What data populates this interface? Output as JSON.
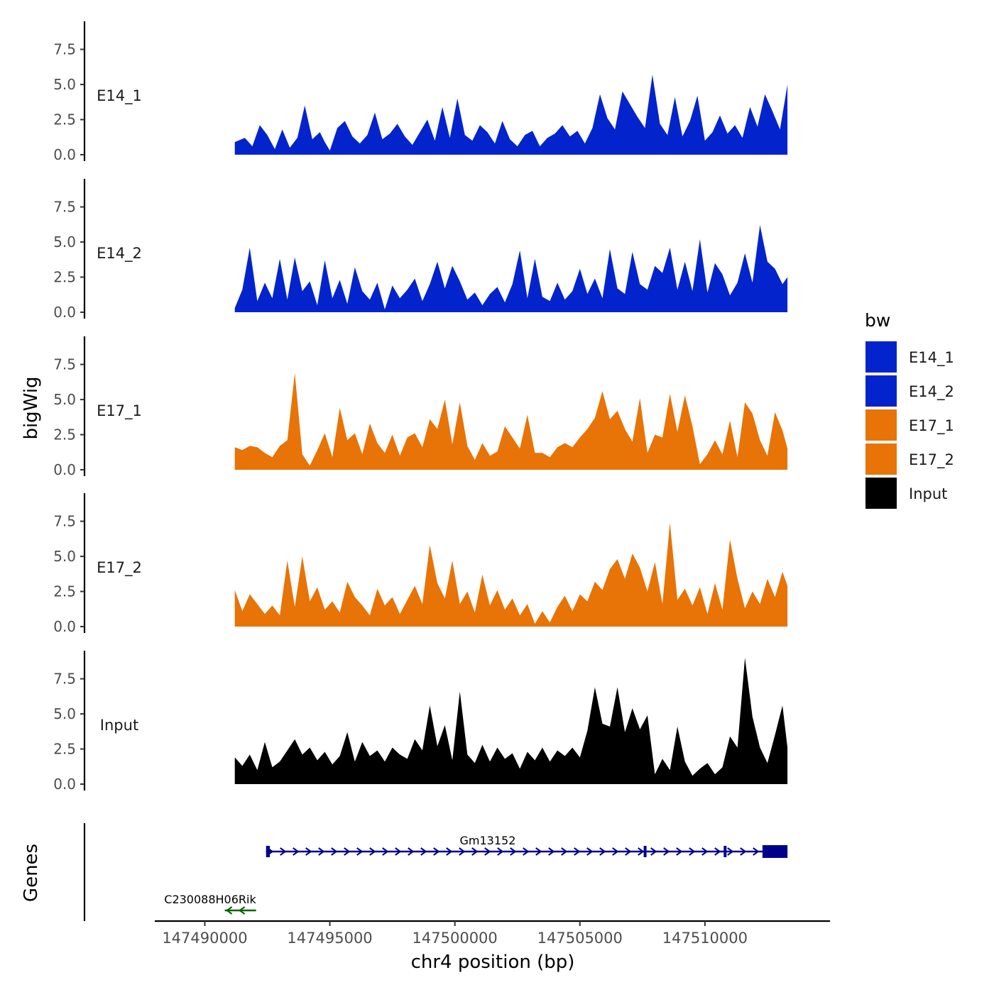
{
  "chart_data": {
    "type": "area",
    "chromosome_axis_label": "chr4 position (bp)",
    "y_axis_label": "bigWig",
    "genes_axis_label": "Genes",
    "xlim": [
      147488000,
      147515000
    ],
    "x_ticks": [
      147490000,
      147495000,
      147500000,
      147505000,
      147510000
    ],
    "x_tick_labels": [
      "147490000",
      "147495000",
      "147500000",
      "147505000",
      "147510000"
    ],
    "ylim": [
      0,
      9.5
    ],
    "y_ticks": [
      0,
      2.5,
      5,
      7.5
    ],
    "y_tick_labels": [
      "0.0",
      "2.5",
      "5.0",
      "7.5"
    ],
    "legend": {
      "title": "bw",
      "entries": [
        {
          "label": "E14_1",
          "color": "#0324CC"
        },
        {
          "label": "E14_2",
          "color": "#0324CC"
        },
        {
          "label": "E17_1",
          "color": "#E87306"
        },
        {
          "label": "E17_2",
          "color": "#E87306"
        },
        {
          "label": "Input",
          "color": "#000000"
        }
      ]
    },
    "series": [
      {
        "name": "E14_1",
        "color": "#0324CC",
        "x": [
          147491200,
          147491600,
          147491900,
          147492200,
          147492500,
          147492800,
          147493100,
          147493400,
          147493700,
          147494000,
          147494300,
          147494600,
          147494800,
          147495000,
          147495300,
          147495600,
          147495900,
          147496200,
          147496500,
          147496800,
          147497100,
          147497400,
          147497700,
          147498000,
          147498300,
          147498600,
          147498900,
          147499200,
          147499500,
          147499800,
          147500100,
          147500400,
          147500700,
          147501000,
          147501300,
          147501600,
          147501900,
          147502200,
          147502500,
          147502800,
          147503100,
          147503400,
          147503700,
          147504000,
          147504300,
          147504600,
          147504900,
          147505200,
          147505500,
          147505800,
          147506100,
          147506400,
          147506700,
          147507000,
          147507300,
          147507600,
          147507900,
          147508200,
          147508500,
          147508800,
          147509100,
          147509400,
          147509700,
          147510000,
          147510300,
          147510600,
          147510900,
          147511200,
          147511500,
          147511800,
          147512100,
          147512400,
          147512700,
          147513000,
          147513300
        ],
        "values": [
          0.9,
          1.2,
          0.6,
          2.1,
          1.4,
          0.4,
          1.8,
          0.5,
          1.2,
          3.5,
          1.1,
          1.6,
          0.9,
          0.3,
          1.9,
          2.4,
          1.3,
          0.8,
          1.4,
          3.0,
          1.1,
          1.5,
          2.2,
          1.3,
          0.7,
          1.6,
          2.5,
          1.0,
          3.4,
          1.2,
          4.0,
          1.4,
          1.0,
          2.1,
          1.6,
          0.8,
          2.4,
          1.1,
          0.6,
          1.4,
          1.7,
          0.6,
          1.2,
          1.5,
          2.1,
          1.3,
          1.7,
          0.8,
          1.9,
          4.3,
          2.6,
          1.8,
          4.5,
          3.6,
          2.7,
          1.9,
          5.7,
          2.2,
          1.4,
          4.1,
          1.3,
          2.4,
          4.2,
          1.0,
          1.6,
          2.8,
          1.5,
          2.1,
          1.2,
          3.4,
          2.0,
          4.3,
          3.1,
          1.8,
          5.0
        ]
      },
      {
        "name": "E14_2",
        "color": "#0324CC",
        "x": [
          147491200,
          147491500,
          147491800,
          147492100,
          147492400,
          147492700,
          147493000,
          147493300,
          147493600,
          147493900,
          147494200,
          147494500,
          147494800,
          147495100,
          147495400,
          147495700,
          147496000,
          147496300,
          147496600,
          147496900,
          147497200,
          147497500,
          147497800,
          147498100,
          147498400,
          147498700,
          147499000,
          147499300,
          147499600,
          147499900,
          147500200,
          147500500,
          147500800,
          147501100,
          147501400,
          147501700,
          147502000,
          147502300,
          147502600,
          147502900,
          147503200,
          147503500,
          147503800,
          147504100,
          147504400,
          147504700,
          147505000,
          147505300,
          147505600,
          147505900,
          147506200,
          147506500,
          147506800,
          147507100,
          147507400,
          147507700,
          147508000,
          147508300,
          147508600,
          147508900,
          147509200,
          147509500,
          147509800,
          147510100,
          147510400,
          147510700,
          147511000,
          147511300,
          147511600,
          147511900,
          147512200,
          147512500,
          147512800,
          147513100,
          147513300
        ],
        "values": [
          0.3,
          1.6,
          4.6,
          0.8,
          2.1,
          1.0,
          3.8,
          0.9,
          3.9,
          1.5,
          2.2,
          0.5,
          3.7,
          1.0,
          2.3,
          0.6,
          3.2,
          1.5,
          0.9,
          2.1,
          0.2,
          1.9,
          1.0,
          1.6,
          2.4,
          0.8,
          2.0,
          3.6,
          1.7,
          3.3,
          2.2,
          0.9,
          1.4,
          0.5,
          1.3,
          1.8,
          0.7,
          2.0,
          4.4,
          1.0,
          3.8,
          1.1,
          0.8,
          2.1,
          0.9,
          1.5,
          3.1,
          1.3,
          2.4,
          1.0,
          4.5,
          1.7,
          1.3,
          4.3,
          2.0,
          1.6,
          3.3,
          2.8,
          4.6,
          1.6,
          3.6,
          1.5,
          5.2,
          1.4,
          3.5,
          2.7,
          1.2,
          2.1,
          4.2,
          2.1,
          6.2,
          3.6,
          3.1,
          2.0,
          2.5
        ]
      },
      {
        "name": "E17_1",
        "color": "#E87306",
        "x": [
          147491200,
          147491500,
          147491800,
          147492100,
          147492400,
          147492700,
          147493000,
          147493300,
          147493600,
          147493900,
          147494200,
          147494500,
          147494800,
          147495100,
          147495400,
          147495700,
          147496000,
          147496300,
          147496600,
          147496900,
          147497200,
          147497500,
          147497800,
          147498100,
          147498400,
          147498700,
          147499000,
          147499300,
          147499600,
          147499900,
          147500200,
          147500500,
          147500800,
          147501100,
          147501400,
          147501700,
          147502000,
          147502300,
          147502600,
          147502900,
          147503200,
          147503500,
          147503800,
          147504100,
          147504400,
          147504700,
          147505000,
          147505300,
          147505600,
          147505900,
          147506200,
          147506500,
          147506800,
          147507100,
          147507400,
          147507700,
          147508000,
          147508300,
          147508600,
          147508900,
          147509200,
          147509500,
          147509800,
          147510100,
          147510400,
          147510700,
          147511000,
          147511300,
          147511600,
          147511900,
          147512200,
          147512500,
          147512800,
          147513100,
          147513300
        ],
        "values": [
          1.6,
          1.4,
          1.7,
          1.6,
          1.2,
          0.9,
          1.7,
          2.1,
          6.9,
          1.1,
          0.3,
          1.4,
          2.6,
          0.9,
          4.4,
          2.1,
          2.6,
          1.1,
          3.3,
          1.9,
          1.2,
          2.5,
          1.0,
          2.3,
          2.6,
          1.6,
          3.6,
          2.9,
          5.0,
          1.8,
          4.8,
          1.7,
          0.7,
          1.9,
          1.0,
          1.3,
          3.1,
          2.3,
          1.5,
          3.9,
          1.2,
          1.2,
          0.9,
          1.6,
          1.9,
          1.6,
          2.3,
          2.9,
          3.7,
          5.6,
          3.6,
          4.2,
          2.9,
          2.0,
          5.1,
          1.2,
          2.5,
          2.3,
          5.4,
          2.7,
          5.3,
          3.1,
          0.4,
          1.1,
          2.1,
          1.1,
          3.5,
          0.9,
          4.8,
          4.0,
          2.1,
          1.0,
          4.1,
          2.8,
          1.5
        ]
      },
      {
        "name": "E17_2",
        "color": "#E87306",
        "x": [
          147491200,
          147491500,
          147491800,
          147492100,
          147492400,
          147492700,
          147493000,
          147493300,
          147493600,
          147493900,
          147494200,
          147494500,
          147494800,
          147495100,
          147495400,
          147495700,
          147496000,
          147496300,
          147496600,
          147496900,
          147497200,
          147497500,
          147497800,
          147498100,
          147498400,
          147498700,
          147499000,
          147499300,
          147499600,
          147499900,
          147500200,
          147500500,
          147500800,
          147501100,
          147501400,
          147501700,
          147502000,
          147502300,
          147502600,
          147502900,
          147503200,
          147503500,
          147503800,
          147504100,
          147504400,
          147504700,
          147505000,
          147505300,
          147505600,
          147505900,
          147506200,
          147506500,
          147506800,
          147507100,
          147507400,
          147507700,
          147508000,
          147508300,
          147508600,
          147508900,
          147509200,
          147509500,
          147509800,
          147510100,
          147510400,
          147510700,
          147511000,
          147511300,
          147511600,
          147511900,
          147512200,
          147512500,
          147512800,
          147513100,
          147513300
        ],
        "values": [
          2.6,
          1.1,
          2.3,
          1.6,
          0.9,
          1.5,
          0.8,
          4.7,
          1.4,
          5.0,
          1.8,
          2.8,
          1.2,
          1.8,
          1.0,
          3.2,
          2.1,
          1.5,
          0.8,
          2.7,
          1.5,
          2.1,
          0.9,
          1.9,
          2.9,
          1.6,
          5.8,
          3.1,
          2.0,
          4.7,
          1.6,
          2.5,
          1.0,
          3.7,
          1.5,
          2.6,
          1.2,
          2.0,
          0.8,
          1.6,
          0.2,
          1.1,
          0.3,
          1.4,
          2.2,
          1.1,
          2.3,
          1.8,
          3.2,
          2.6,
          4.1,
          4.8,
          3.4,
          5.2,
          4.2,
          2.5,
          4.6,
          1.6,
          7.4,
          1.9,
          2.7,
          1.5,
          2.8,
          0.9,
          3.1,
          1.2,
          6.2,
          3.4,
          1.3,
          2.5,
          1.6,
          3.4,
          2.1,
          3.9,
          2.9
        ]
      },
      {
        "name": "Input",
        "color": "#000000",
        "x": [
          147491200,
          147491500,
          147491800,
          147492100,
          147492400,
          147492700,
          147493000,
          147493300,
          147493600,
          147493900,
          147494200,
          147494500,
          147494800,
          147495100,
          147495400,
          147495700,
          147496000,
          147496300,
          147496600,
          147496900,
          147497200,
          147497500,
          147497800,
          147498100,
          147498400,
          147498700,
          147499000,
          147499300,
          147499600,
          147499900,
          147500200,
          147500500,
          147500800,
          147501100,
          147501400,
          147501700,
          147502000,
          147502300,
          147502600,
          147502900,
          147503200,
          147503500,
          147503800,
          147504100,
          147504400,
          147504700,
          147505000,
          147505300,
          147505600,
          147505900,
          147506200,
          147506500,
          147506800,
          147507100,
          147507400,
          147507700,
          147508000,
          147508300,
          147508600,
          147508900,
          147509200,
          147509500,
          147509800,
          147510100,
          147510400,
          147510700,
          147511000,
          147511300,
          147511600,
          147511900,
          147512200,
          147512500,
          147512800,
          147513100,
          147513300
        ],
        "values": [
          1.9,
          1.3,
          2.1,
          1.0,
          3.0,
          1.2,
          1.6,
          2.4,
          3.2,
          2.1,
          2.6,
          1.7,
          2.3,
          1.4,
          2.0,
          3.7,
          1.6,
          3.0,
          2.0,
          2.4,
          1.6,
          2.6,
          2.1,
          1.8,
          3.2,
          2.4,
          5.6,
          2.7,
          4.2,
          1.7,
          6.6,
          2.1,
          1.5,
          2.8,
          1.6,
          2.6,
          1.8,
          2.2,
          1.1,
          2.3,
          1.7,
          2.6,
          1.6,
          2.4,
          2.0,
          2.6,
          1.9,
          3.8,
          6.9,
          4.3,
          4.1,
          6.9,
          3.7,
          5.4,
          3.9,
          4.9,
          0.7,
          1.8,
          1.0,
          4.1,
          1.6,
          0.6,
          1.1,
          1.5,
          0.7,
          1.2,
          3.4,
          2.6,
          9.0,
          4.8,
          2.6,
          1.5,
          3.5,
          5.6,
          2.6
        ]
      }
    ],
    "genes": [
      {
        "name": "Gm13152",
        "start": 147492450,
        "end": 147513300,
        "strand": "+",
        "color": "#00008B",
        "exons": [
          [
            147492450,
            147492600
          ],
          [
            147507550,
            147507600
          ],
          [
            147510750,
            147510850
          ],
          [
            147512300,
            147513300
          ]
        ],
        "row": 1
      },
      {
        "name": "C230088H06Rik",
        "start": 147490800,
        "end": 147492050,
        "strand": "-",
        "color": "#006400",
        "exons": [],
        "row": 2
      }
    ]
  }
}
